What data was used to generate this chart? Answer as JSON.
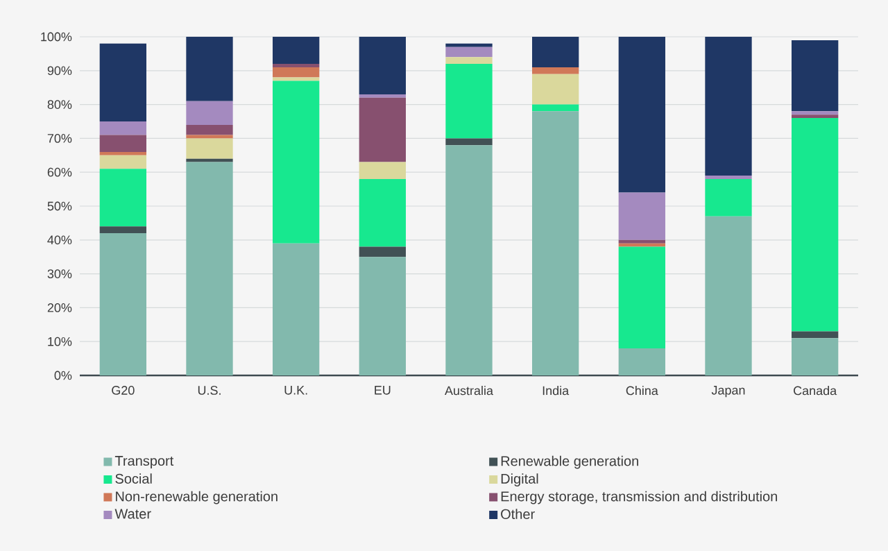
{
  "chart_data": {
    "type": "bar",
    "stacked": true,
    "categories": [
      "G20",
      "U.S.",
      "U.K.",
      "EU",
      "Australia",
      "India",
      "China",
      "Japan",
      "Canada"
    ],
    "series": [
      {
        "name": "Transport",
        "color": "#82b9ad",
        "values": [
          42,
          63,
          39,
          35,
          68,
          78,
          8,
          47,
          11
        ]
      },
      {
        "name": "Renewable generation",
        "color": "#415155",
        "values": [
          2,
          1,
          0,
          3,
          2,
          0,
          0,
          0,
          2
        ]
      },
      {
        "name": "Social",
        "color": "#17e88f",
        "values": [
          17,
          0,
          48,
          20,
          22,
          2,
          30,
          11,
          63
        ]
      },
      {
        "name": "Digital",
        "color": "#dad89c",
        "values": [
          4,
          6,
          1,
          5,
          2,
          9,
          0,
          0,
          0
        ]
      },
      {
        "name": "Non-renewable generation",
        "color": "#d07858",
        "values": [
          1,
          1,
          3,
          0,
          0,
          2,
          1,
          0,
          0
        ]
      },
      {
        "name": "Energy storage, transmission and distribution",
        "color": "#87506f",
        "values": [
          5,
          3,
          1,
          19,
          0,
          0,
          1,
          0,
          1
        ]
      },
      {
        "name": "Water",
        "color": "#a48abf",
        "values": [
          4,
          7,
          0,
          1,
          3,
          0,
          14,
          1,
          1
        ]
      },
      {
        "name": "Other",
        "color": "#1f3765",
        "values": [
          23,
          19,
          8,
          17,
          1,
          9,
          46,
          41,
          21
        ]
      }
    ],
    "ylim": [
      0,
      100
    ],
    "yticks": [
      {
        "value": 0,
        "label": "0%"
      },
      {
        "value": 10,
        "label": "10%"
      },
      {
        "value": 20,
        "label": "20%"
      },
      {
        "value": 30,
        "label": "30%"
      },
      {
        "value": 40,
        "label": "40%"
      },
      {
        "value": 50,
        "label": "50%"
      },
      {
        "value": 60,
        "label": "60%"
      },
      {
        "value": 70,
        "label": "70%"
      },
      {
        "value": 80,
        "label": "80%"
      },
      {
        "value": 90,
        "label": "90%"
      },
      {
        "value": 100,
        "label": "100%"
      }
    ],
    "grid": "y",
    "legend": "bottom"
  }
}
